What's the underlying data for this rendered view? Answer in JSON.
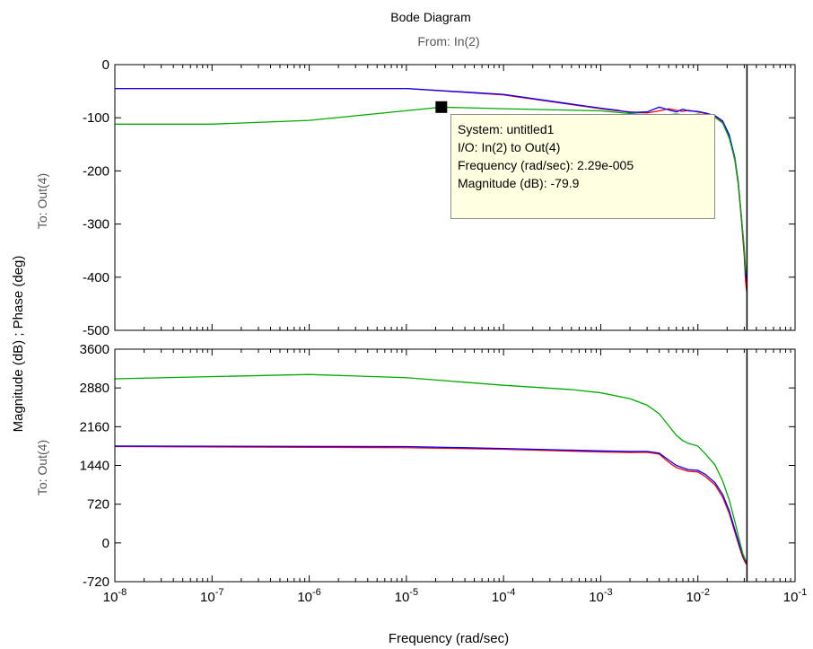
{
  "figure": {
    "title": "Bode Diagram",
    "subtitle": "From: In(2)",
    "xlabel": "Frequency  (rad/sec)",
    "ylabel": "Magnitude (dB) ; Phase (deg)",
    "colors": {
      "red": "#ff0000",
      "blue": "#0000ff",
      "green": "#00aa00",
      "black": "#000000"
    }
  },
  "datatip": {
    "system": "System: untitled1",
    "io": "I/O: In(2) to Out(4)",
    "frequency": "Frequency (rad/sec): 2.29e-005",
    "magnitude": "Magnitude (dB): -79.9",
    "marker_x": 2.29e-05,
    "marker_y": -79.9
  },
  "chart_data": [
    {
      "type": "line",
      "panel": "magnitude",
      "row_label": "To: Out(4)",
      "xscale": "log",
      "xlim": [
        1e-08,
        0.1
      ],
      "ylim": [
        -500,
        0
      ],
      "x_tick_exponents": [
        -8,
        -7,
        -6,
        -5,
        -4,
        -3,
        -2,
        -1
      ],
      "y_ticks": [
        0,
        -100,
        -200,
        -300,
        -400,
        -500
      ],
      "vertical_line_x": 0.032,
      "series": [
        {
          "color": "#ff0000",
          "x": [
            1e-08,
            1e-05,
            0.0001,
            0.001,
            0.0015,
            0.002,
            0.003,
            0.004,
            0.005,
            0.006,
            0.007,
            0.008,
            0.01,
            0.012,
            0.015,
            0.018,
            0.021,
            0.024,
            0.026,
            0.028,
            0.03,
            0.031,
            0.032
          ],
          "y": [
            -45,
            -45,
            -57,
            -83,
            -87,
            -89,
            -91,
            -87,
            -83,
            -86,
            -88,
            -86,
            -89,
            -92,
            -97,
            -108,
            -135,
            -180,
            -225,
            -290,
            -360,
            -410,
            -430
          ]
        },
        {
          "color": "#0000ff",
          "x": [
            1e-08,
            1e-05,
            0.0001,
            0.001,
            0.0015,
            0.002,
            0.003,
            0.004,
            0.005,
            0.006,
            0.007,
            0.008,
            0.01,
            0.012,
            0.015,
            0.018,
            0.021,
            0.024,
            0.026,
            0.028,
            0.03,
            0.031,
            0.032
          ],
          "y": [
            -45,
            -45,
            -56,
            -82,
            -86,
            -90,
            -89,
            -80,
            -85,
            -89,
            -84,
            -87,
            -88,
            -91,
            -96,
            -106,
            -132,
            -175,
            -220,
            -285,
            -350,
            -395,
            -410
          ]
        },
        {
          "color": "#00aa00",
          "x": [
            1e-08,
            1e-07,
            1e-06,
            2.29e-05,
            0.0001,
            0.001,
            0.002,
            0.004,
            0.006,
            0.008,
            0.01,
            0.012,
            0.015,
            0.018,
            0.021,
            0.024,
            0.026,
            0.028,
            0.03,
            0.031,
            0.032
          ],
          "y": [
            -112,
            -112,
            -105,
            -80,
            -83,
            -87,
            -92,
            -96,
            -93,
            -96,
            -93,
            -95,
            -99,
            -110,
            -138,
            -178,
            -222,
            -285,
            -345,
            -385,
            -400
          ]
        }
      ]
    },
    {
      "type": "line",
      "panel": "phase",
      "row_label": "To: Out(4)",
      "xscale": "log",
      "xlim": [
        1e-08,
        0.1
      ],
      "ylim": [
        -720,
        3600
      ],
      "x_tick_exponents": [
        -8,
        -7,
        -6,
        -5,
        -4,
        -3,
        -2,
        -1
      ],
      "y_ticks": [
        3600,
        2880,
        2160,
        1440,
        720,
        0,
        -720
      ],
      "vertical_line_x": 0.032,
      "series": [
        {
          "color": "#ff0000",
          "x": [
            1e-08,
            1e-05,
            0.0001,
            0.001,
            0.002,
            0.003,
            0.004,
            0.005,
            0.006,
            0.008,
            0.01,
            0.012,
            0.015,
            0.018,
            0.021,
            0.024,
            0.027,
            0.029,
            0.031,
            0.032
          ],
          "y": [
            1790,
            1770,
            1740,
            1690,
            1680,
            1685,
            1650,
            1500,
            1400,
            1330,
            1320,
            1230,
            1080,
            850,
            550,
            200,
            -100,
            -270,
            -380,
            -400
          ]
        },
        {
          "color": "#0000ff",
          "x": [
            1e-08,
            1e-05,
            0.0001,
            0.001,
            0.002,
            0.003,
            0.004,
            0.005,
            0.006,
            0.008,
            0.01,
            0.012,
            0.015,
            0.018,
            0.021,
            0.024,
            0.027,
            0.029,
            0.031,
            0.032
          ],
          "y": [
            1800,
            1790,
            1755,
            1710,
            1700,
            1700,
            1670,
            1540,
            1440,
            1360,
            1350,
            1270,
            1120,
            900,
            600,
            250,
            -60,
            -230,
            -340,
            -370
          ]
        },
        {
          "color": "#00aa00",
          "x": [
            1e-08,
            1e-06,
            1e-05,
            0.0001,
            0.0005,
            0.001,
            0.002,
            0.003,
            0.004,
            0.005,
            0.006,
            0.007,
            0.008,
            0.01,
            0.012,
            0.015,
            0.018,
            0.021,
            0.024,
            0.027,
            0.029,
            0.031,
            0.032
          ],
          "y": [
            3050,
            3130,
            3070,
            2930,
            2850,
            2790,
            2680,
            2560,
            2400,
            2180,
            2000,
            1900,
            1850,
            1800,
            1650,
            1450,
            1150,
            800,
            400,
            20,
            -200,
            -320,
            -350
          ]
        }
      ]
    }
  ]
}
